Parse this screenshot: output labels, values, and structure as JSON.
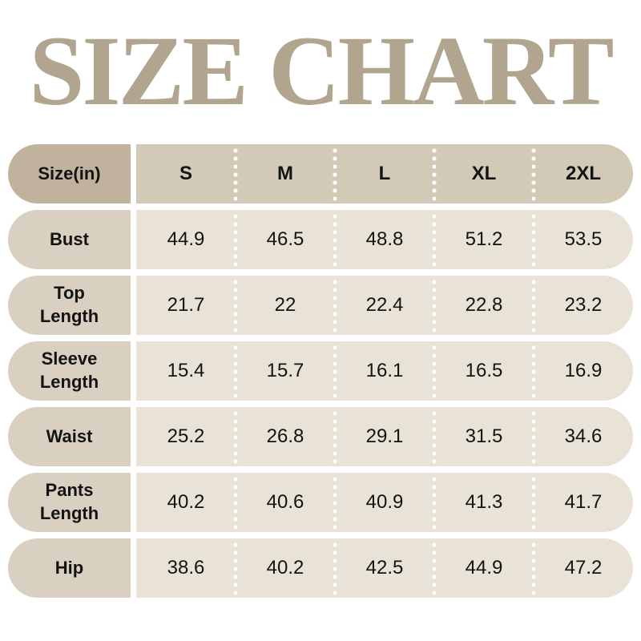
{
  "title": "SIZE CHART",
  "colors": {
    "title_text": "#b2a58f",
    "header_label_bg": "#c0b29c",
    "header_values_bg": "#d3c9b7",
    "row_label_bg": "#d9d0c1",
    "row_values_bg": "#e9e3d7",
    "cell_text": "#131313",
    "separator_dots": "#ffffff",
    "page_bg": "#ffffff"
  },
  "chart_data": {
    "type": "table",
    "title": "SIZE CHART",
    "columns": [
      "Size(in)",
      "S",
      "M",
      "L",
      "XL",
      "2XL"
    ],
    "rows": [
      [
        "Bust",
        44.9,
        46.5,
        48.8,
        51.2,
        53.5
      ],
      [
        "Top Length",
        21.7,
        22,
        22.4,
        22.8,
        23.2
      ],
      [
        "Sleeve Length",
        15.4,
        15.7,
        16.1,
        16.5,
        16.9
      ],
      [
        "Waist",
        25.2,
        26.8,
        29.1,
        31.5,
        34.6
      ],
      [
        "Pants Length",
        40.2,
        40.6,
        40.9,
        41.3,
        41.7
      ],
      [
        "Hip",
        38.6,
        40.2,
        42.5,
        44.9,
        47.2
      ]
    ]
  },
  "table": {
    "header": {
      "label": "Size(in)",
      "sizes": [
        "S",
        "M",
        "L",
        "XL",
        "2XL"
      ]
    },
    "rows": [
      {
        "label": "Bust",
        "values": [
          "44.9",
          "46.5",
          "48.8",
          "51.2",
          "53.5"
        ]
      },
      {
        "label": "Top Length",
        "values": [
          "21.7",
          "22",
          "22.4",
          "22.8",
          "23.2"
        ]
      },
      {
        "label": "Sleeve Length",
        "values": [
          "15.4",
          "15.7",
          "16.1",
          "16.5",
          "16.9"
        ]
      },
      {
        "label": "Waist",
        "values": [
          "25.2",
          "26.8",
          "29.1",
          "31.5",
          "34.6"
        ]
      },
      {
        "label": "Pants Length",
        "values": [
          "40.2",
          "40.6",
          "40.9",
          "41.3",
          "41.7"
        ]
      },
      {
        "label": "Hip",
        "values": [
          "38.6",
          "40.2",
          "42.5",
          "44.9",
          "47.2"
        ]
      }
    ]
  }
}
